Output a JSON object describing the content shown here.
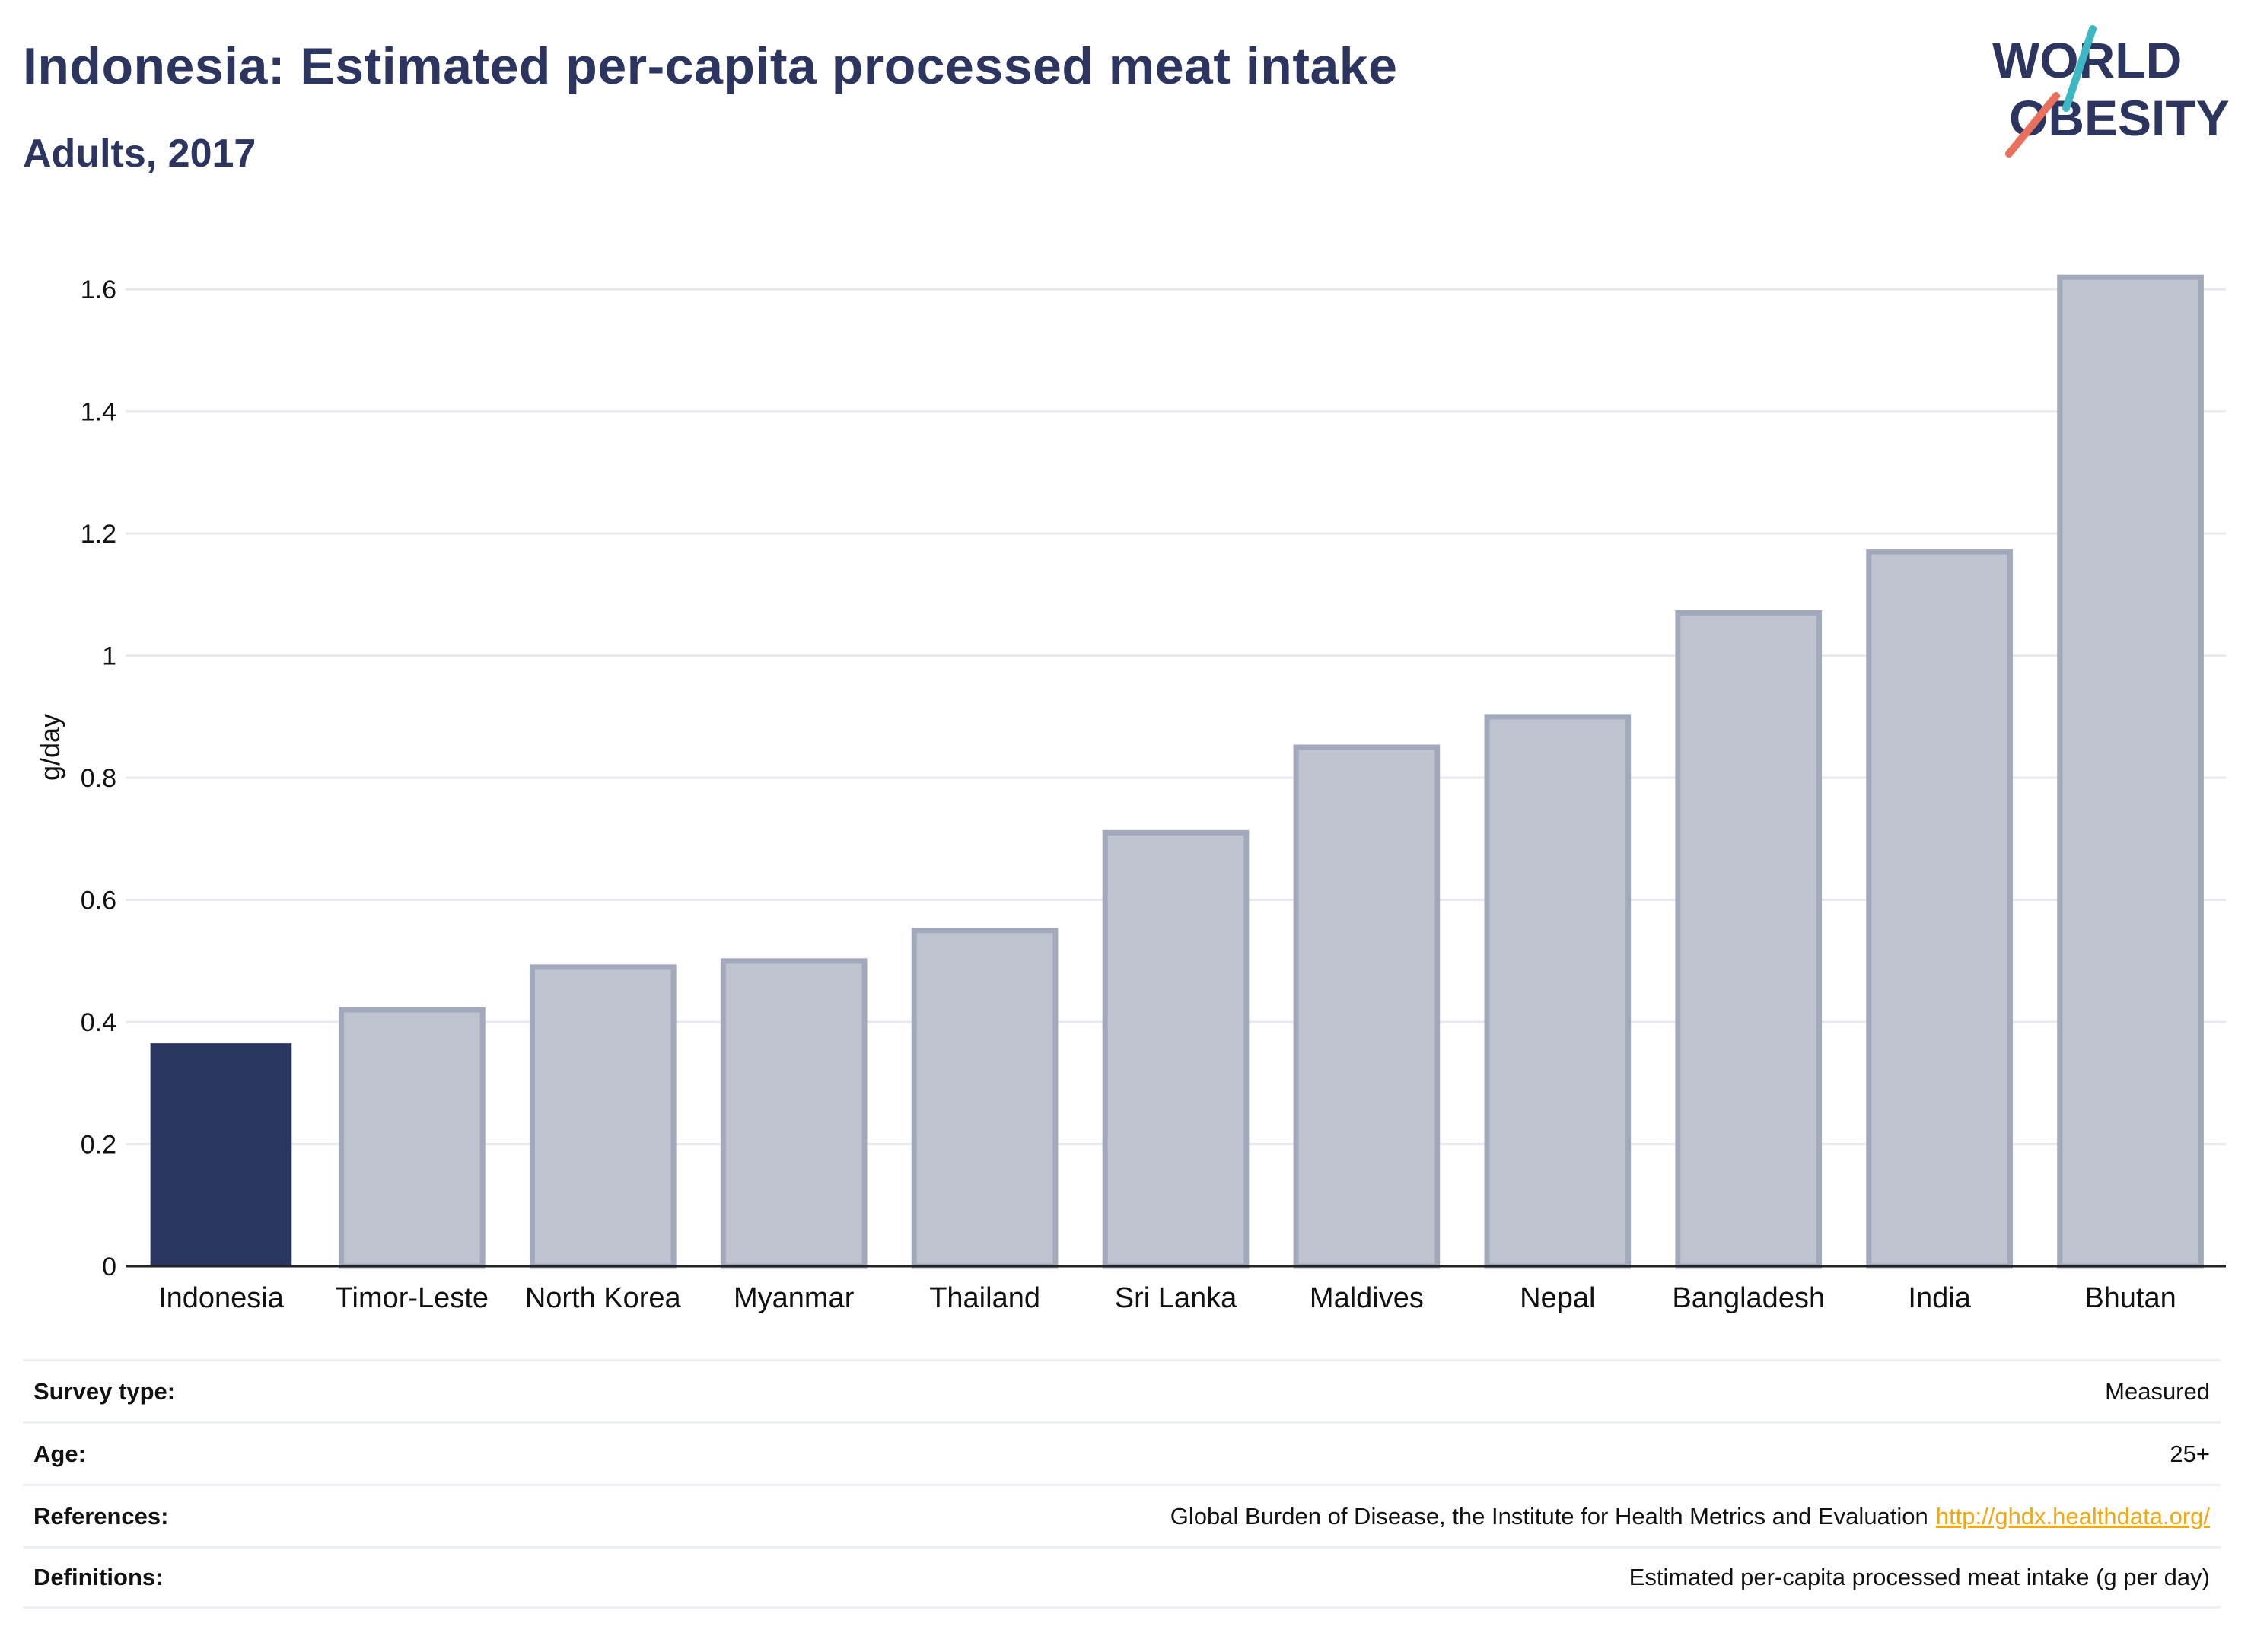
{
  "header": {
    "title": "Indonesia: Estimated per-capita processed meat intake",
    "subtitle": "Adults, 2017"
  },
  "logo": {
    "line1": "WORLD",
    "line2": "OBESITY",
    "icon": "world-obesity-logo"
  },
  "chart_data": {
    "type": "bar",
    "title": "Indonesia: Estimated per-capita processed meat intake",
    "subtitle": "Adults, 2017",
    "xlabel": "",
    "ylabel": "g/day",
    "ylim": [
      0,
      1.7
    ],
    "yticks": [
      0,
      0.2,
      0.4,
      0.6,
      0.8,
      1,
      1.2,
      1.4,
      1.6
    ],
    "ytick_labels": [
      "0",
      "0.2",
      "0.4",
      "0.6",
      "0.8",
      "1",
      "1.2",
      "1.4",
      "1.6"
    ],
    "grid": true,
    "categories": [
      "Indonesia",
      "Timor-Leste",
      "North Korea",
      "Myanmar",
      "Thailand",
      "Sri Lanka",
      "Maldives",
      "Nepal",
      "Bangladesh",
      "India",
      "Bhutan"
    ],
    "values": [
      0.365,
      0.42,
      0.49,
      0.5,
      0.55,
      0.71,
      0.85,
      0.9,
      1.07,
      1.17,
      1.62
    ],
    "highlight": "Indonesia",
    "colors": {
      "highlight": "#2b3561",
      "others_fill": "#bfc2cf",
      "others_stroke": "#a3a9bc",
      "grid": "#e8e9ee",
      "axis": "#222222"
    }
  },
  "info": {
    "rows": [
      {
        "label": "Survey type:",
        "value": "Measured"
      },
      {
        "label": "Age:",
        "value": "25+"
      },
      {
        "label": "References:",
        "value": "Global Burden of Disease, the Institute for Health Metrics and Evaluation",
        "link": "http://ghdx.healthdata.org/"
      },
      {
        "label": "Definitions:",
        "value": "Estimated per-capita processed meat intake (g per day)"
      }
    ]
  }
}
